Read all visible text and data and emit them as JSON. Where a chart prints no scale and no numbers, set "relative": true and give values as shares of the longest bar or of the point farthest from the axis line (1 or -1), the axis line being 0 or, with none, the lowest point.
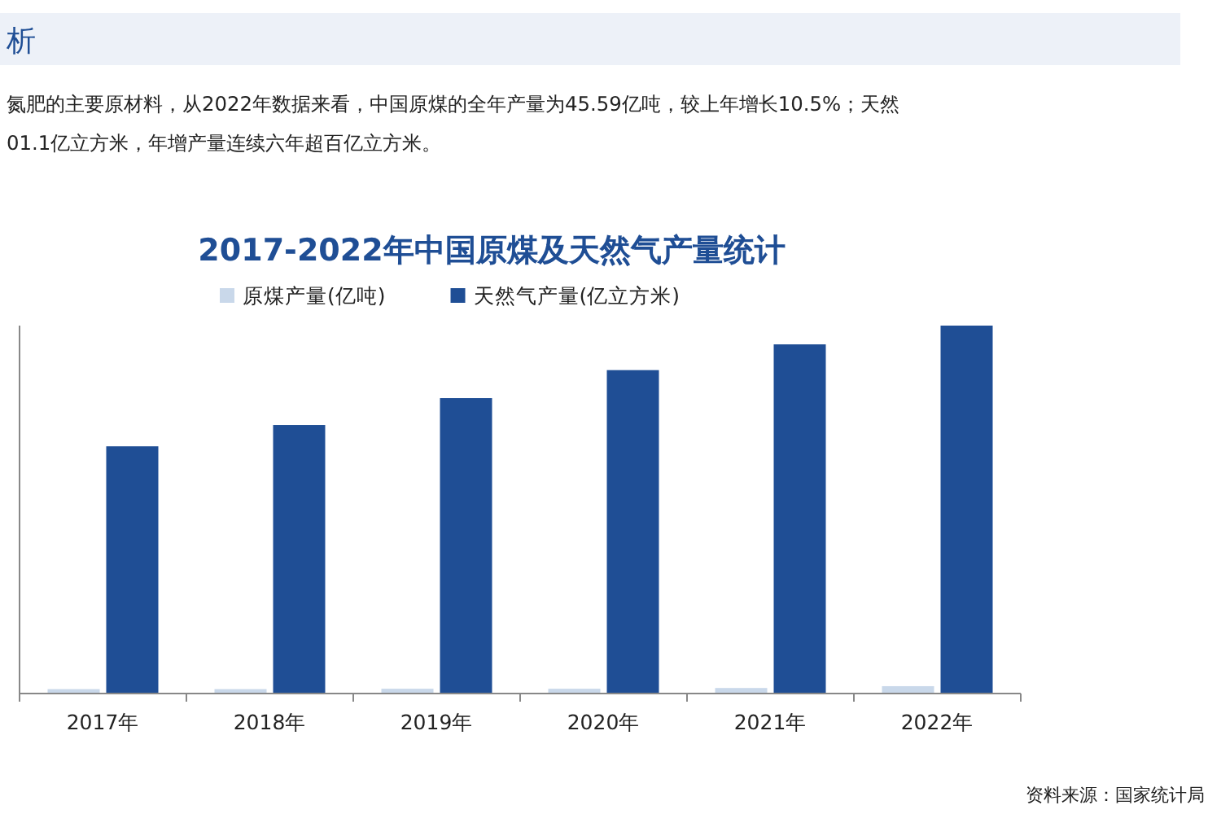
{
  "chart_data": {
    "type": "bar",
    "title": "2017-2022年中国原煤及天然气产量统计",
    "categories": [
      "2017年",
      "2018年",
      "2019年",
      "2020年",
      "2021年",
      "2022年"
    ],
    "relative": true,
    "series": [
      {
        "name": "原煤产量(亿吨)",
        "color": "#c9d8ea",
        "values": [
          0.012,
          0.012,
          0.013,
          0.013,
          0.015,
          0.02
        ]
      },
      {
        "name": "天然气产量(亿立方米)",
        "color": "#1f4e95",
        "values": [
          0.672,
          0.73,
          0.803,
          0.879,
          0.949,
          1
        ]
      }
    ],
    "legend": "top",
    "annotations": [
      "析",
      "氮肥的主要原材料，从2022年数据来看，中国原煤的全年产量为45.59亿吨，较上年增长10.5%；天然",
      "01.1亿立方米，年增产量连续六年超百亿立方米。",
      "资料来源：国家统计局"
    ]
  }
}
